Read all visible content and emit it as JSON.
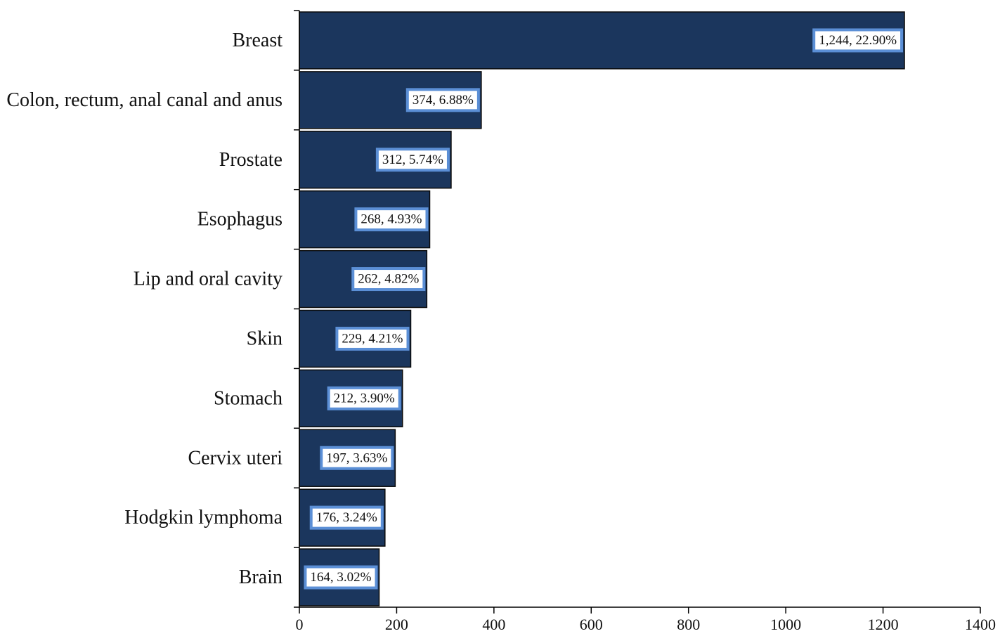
{
  "chart_data": {
    "type": "bar",
    "orientation": "horizontal",
    "categories": [
      "Breast",
      "Colon, rectum, anal canal and anus",
      "Prostate",
      "Esophagus",
      "Lip and oral cavity",
      "Skin",
      "Stomach",
      "Cervix uteri",
      "Hodgkin lymphoma",
      "Brain"
    ],
    "values": [
      1244,
      374,
      312,
      268,
      262,
      229,
      212,
      197,
      176,
      164
    ],
    "data_labels": [
      "1,244, 22.90%",
      "374, 6.88%",
      "312, 5.74%",
      "268, 4.93%",
      "262, 4.82%",
      "229, 4.21%",
      "212, 3.90%",
      "197, 3.63%",
      "176, 3.24%",
      "164, 3.02%"
    ],
    "x_ticks": [
      "0",
      "200",
      "400",
      "600",
      "800",
      "1000",
      "1200",
      "1400"
    ],
    "xlim": [
      0,
      1400
    ],
    "title": "",
    "xlabel": "",
    "ylabel": "",
    "grid": false,
    "legend": "none",
    "colors": {
      "bar": "#1b365d",
      "bar_outline": "#0a0a0a",
      "label_border": "#5b8fd6",
      "label_bg": "#ffffff",
      "axis": "#000000"
    }
  }
}
